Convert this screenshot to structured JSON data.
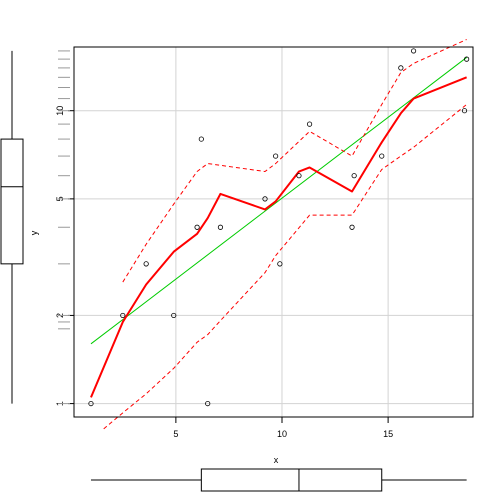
{
  "chart_data": {
    "type": "scatter",
    "title": "",
    "xlabel": "x",
    "ylabel": "y",
    "xlim": [
      0.2,
      19.0
    ],
    "ylim": [
      0.9,
      16.5
    ],
    "y_scale": "log",
    "grid": true,
    "x_ticks": [
      5,
      10,
      15
    ],
    "y_ticks": [
      1,
      2,
      5,
      10
    ],
    "x_tick_labels": [
      "5",
      "10",
      "15"
    ],
    "y_tick_labels": [
      "1",
      "2",
      "5",
      "10"
    ],
    "points": {
      "x": [
        1,
        2.5,
        3.6,
        4.9,
        6.0,
        6.2,
        6.5,
        7.1,
        9.2,
        9.7,
        9.9,
        10.8,
        11.3,
        13.3,
        13.4,
        14.7,
        15.6,
        16.2,
        18.6,
        18.7
      ],
      "y": [
        1,
        2,
        3,
        2,
        4,
        8,
        1,
        4,
        5,
        7,
        3,
        6,
        9,
        4,
        6,
        7,
        14,
        16,
        10,
        15
      ]
    },
    "smooth_line": {
      "color": "#ff0000",
      "x": [
        1,
        2.5,
        3.6,
        4.9,
        6.0,
        6.5,
        7.1,
        9.2,
        9.7,
        10.8,
        11.3,
        13.3,
        14.7,
        15.6,
        16.2,
        18.7
      ],
      "y": [
        1.05,
        1.9,
        2.55,
        3.3,
        3.8,
        4.3,
        5.2,
        4.6,
        4.9,
        6.2,
        6.4,
        5.3,
        7.8,
        9.8,
        11.0,
        13.0
      ]
    },
    "smooth_upper": {
      "color": "#ff0000",
      "x": [
        2.5,
        3.6,
        4.9,
        6.0,
        6.5,
        9.2,
        9.7,
        11.3,
        13.3,
        14.7,
        15.6,
        16.2,
        18.7
      ],
      "y": [
        2.6,
        3.5,
        4.8,
        6.2,
        6.6,
        6.2,
        6.6,
        8.5,
        7.0,
        10.5,
        13.5,
        14.5,
        17.5
      ]
    },
    "smooth_lower": {
      "color": "#ff0000",
      "x": [
        1.6,
        2.5,
        3.6,
        4.9,
        6.0,
        6.5,
        7.1,
        9.2,
        9.7,
        11.3,
        13.3,
        14.7,
        15.6,
        16.2,
        18.7
      ],
      "y": [
        0.82,
        0.93,
        1.08,
        1.32,
        1.62,
        1.72,
        1.92,
        2.8,
        3.2,
        4.4,
        4.4,
        6.3,
        7.0,
        7.5,
        10.5
      ]
    },
    "regression_line": {
      "color": "#00cc00",
      "x": [
        1,
        18.7
      ],
      "y": [
        1.6,
        15.2
      ]
    },
    "y_rug_minor": [
      1.8,
      1.9,
      3,
      4,
      6,
      7,
      8,
      9,
      11,
      12,
      13,
      14,
      15,
      16
    ],
    "x_boxplot": {
      "min": 1,
      "q1": 6.2,
      "median": 10.8,
      "q3": 14.7,
      "max": 18.7
    },
    "y_boxplot": {
      "min": 1,
      "q1": 3,
      "median": 5.5,
      "q3": 8,
      "max": 16
    }
  }
}
